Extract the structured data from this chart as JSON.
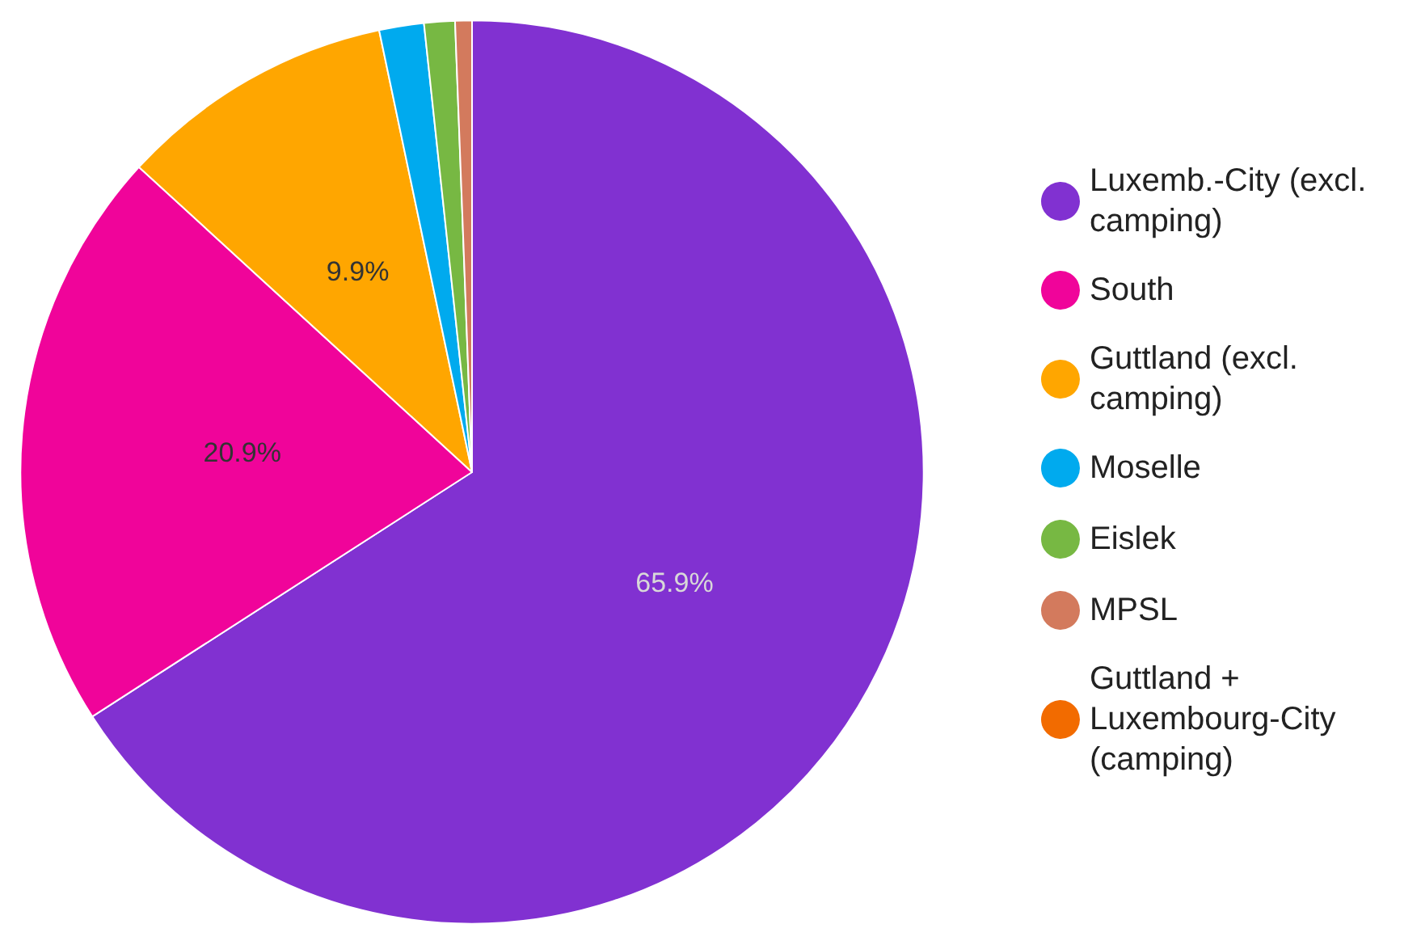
{
  "chart_data": {
    "type": "pie",
    "categories": [
      "Luxemb.-City (excl. camping)",
      "South",
      "Guttland (excl. camping)",
      "Moselle",
      "Eislek",
      "MPSL",
      "Guttland + Luxembourg-City (camping)"
    ],
    "values": [
      65.9,
      20.9,
      9.9,
      1.6,
      1.1,
      0.6,
      0
    ],
    "colors": [
      "#8131d1",
      "#f0049a",
      "#ffa600",
      "#00aaee",
      "#77b843",
      "#d37a5d",
      "#f26b00"
    ],
    "value_labels": [
      "65.9%",
      "20.9%",
      "9.9%",
      null,
      null,
      null,
      null
    ],
    "legend": "right"
  }
}
